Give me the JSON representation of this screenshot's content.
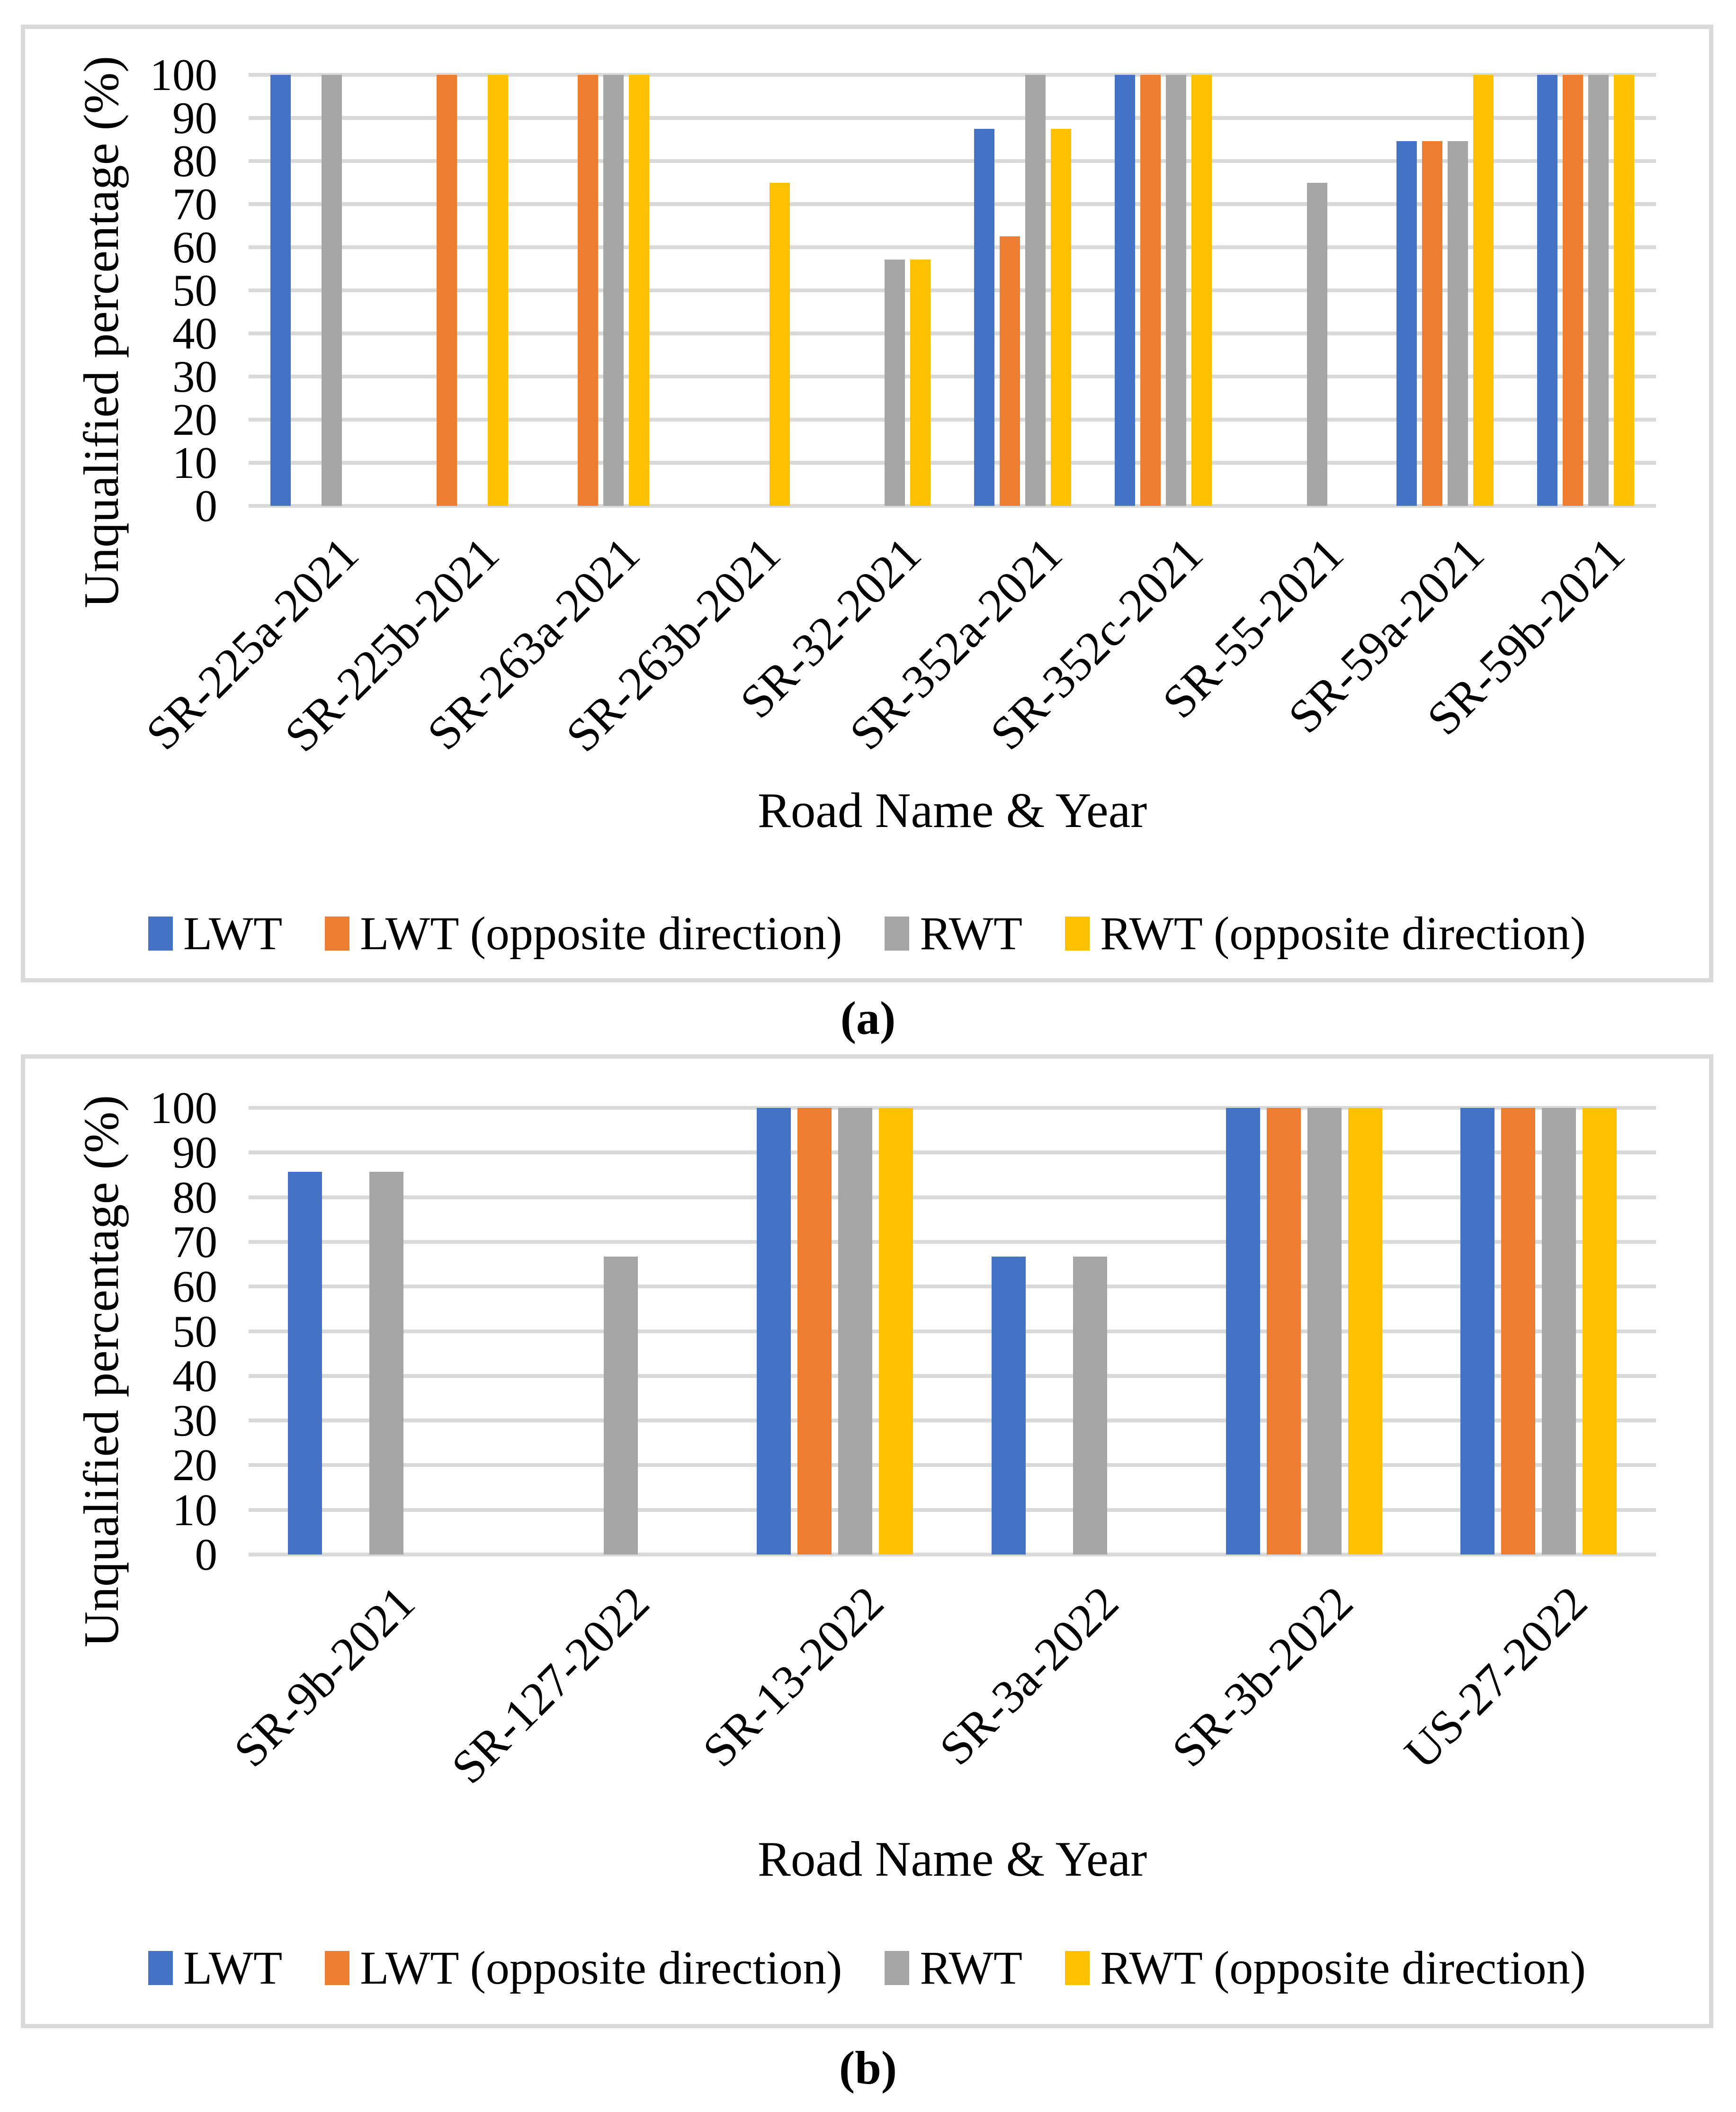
{
  "figure": {
    "captions": {
      "a": "(a)",
      "b": "(b)"
    }
  },
  "chart_data": [
    {
      "id": "a",
      "type": "bar",
      "title": "",
      "xlabel": "Road Name & Year",
      "ylabel": "Unqualified percentage (%)",
      "ylim": [
        0,
        100
      ],
      "ytick_step": 10,
      "yticks": [
        100,
        90,
        80,
        70,
        60,
        50,
        40,
        30,
        20,
        10,
        0
      ],
      "grid": true,
      "legend_position": "bottom",
      "category_label_rotation": -45,
      "categories": [
        "SR-225a-2021",
        "SR-225b-2021",
        "SR-263a-2021",
        "SR-263b-2021",
        "SR-32-2021",
        "SR-352a-2021",
        "SR-352c-2021",
        "SR-55-2021",
        "SR-59a-2021",
        "SR-59b-2021"
      ],
      "series": [
        {
          "name": "LWT",
          "color": "#4472C4",
          "values": [
            100,
            null,
            null,
            null,
            null,
            87.5,
            100,
            null,
            84.6,
            100
          ]
        },
        {
          "name": "LWT (opposite direction)",
          "color": "#ED7D31",
          "values": [
            null,
            100,
            100,
            null,
            null,
            62.5,
            100,
            null,
            84.6,
            100
          ]
        },
        {
          "name": "RWT",
          "color": "#A5A5A5",
          "values": [
            100,
            null,
            100,
            null,
            57.1,
            100,
            100,
            75,
            84.6,
            100
          ]
        },
        {
          "name": "RWT (opposite direction)",
          "color": "#FFC000",
          "values": [
            null,
            100,
            100,
            75,
            57.1,
            87.5,
            100,
            null,
            100,
            100
          ]
        }
      ]
    },
    {
      "id": "b",
      "type": "bar",
      "title": "",
      "xlabel": "Road Name & Year",
      "ylabel": "Unqualified percentage (%)",
      "ylim": [
        0,
        100
      ],
      "ytick_step": 10,
      "yticks": [
        100,
        90,
        80,
        70,
        60,
        50,
        40,
        30,
        20,
        10,
        0
      ],
      "grid": true,
      "legend_position": "bottom",
      "category_label_rotation": -45,
      "categories": [
        "SR-9b-2021",
        "SR-127-2022",
        "SR-13-2022",
        "SR-3a-2022",
        "SR-3b-2022",
        "US-27-2022"
      ],
      "series": [
        {
          "name": "LWT",
          "color": "#4472C4",
          "values": [
            85.7,
            null,
            100,
            66.7,
            100,
            100
          ]
        },
        {
          "name": "LWT (opposite direction)",
          "color": "#ED7D31",
          "values": [
            null,
            null,
            100,
            null,
            100,
            100
          ]
        },
        {
          "name": "RWT",
          "color": "#A5A5A5",
          "values": [
            85.7,
            66.7,
            100,
            66.7,
            100,
            100
          ]
        },
        {
          "name": "RWT (opposite direction)",
          "color": "#FFC000",
          "values": [
            null,
            null,
            100,
            null,
            100,
            100
          ]
        }
      ]
    }
  ],
  "colors": {
    "lwt": "#4472C4",
    "lwt_opposite": "#ED7D31",
    "rwt": "#A5A5A5",
    "rwt_opposite": "#FFC000",
    "gridline": "#D9D9D9",
    "panel_border": "#D9D9D9"
  }
}
